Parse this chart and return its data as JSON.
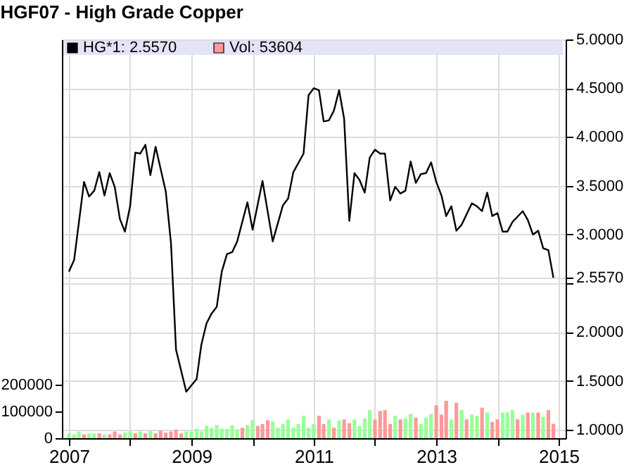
{
  "chart_data": {
    "type": "line",
    "title": "HGF07 - High Grade Copper",
    "xlim": [
      "2007-01-01",
      "2015-01-01"
    ],
    "xticks": [
      {
        "value": "2007-01-01",
        "label": "2007"
      },
      {
        "value": "2008-01-01",
        "label": null
      },
      {
        "value": "2009-01-01",
        "label": "2009"
      },
      {
        "value": "2010-01-01",
        "label": null
      },
      {
        "value": "2011-01-01",
        "label": "2011"
      },
      {
        "value": "2012-01-01",
        "label": null
      },
      {
        "value": "2013-01-01",
        "label": "2013"
      },
      {
        "value": "2014-01-01",
        "label": null
      },
      {
        "value": "2015-01-01",
        "label": "2015"
      }
    ],
    "ylim": [
      0,
      1490000
    ],
    "yticks": [
      0,
      100000,
      200000
    ],
    "y2lim": [
      0.913,
      5.0
    ],
    "y2ticks": [
      {
        "value": 1.0,
        "label": "1.0000"
      },
      {
        "value": 1.5,
        "label": "1.5000"
      },
      {
        "value": 2.0,
        "label": "2.0000"
      },
      {
        "value": 2.5,
        "label": null
      },
      {
        "value": 2.557,
        "label": "2.5570"
      },
      {
        "value": 3.0,
        "label": "3.0000"
      },
      {
        "value": 3.5,
        "label": "3.5000"
      },
      {
        "value": 4.0,
        "label": "4.0000"
      },
      {
        "value": 4.5,
        "label": "4.5000"
      },
      {
        "value": 5.0,
        "label": "5.0000"
      }
    ],
    "grid": true,
    "legend": "top left",
    "series": [
      {
        "name": "Vol: 53604",
        "type": "bar",
        "axis": "y",
        "color": "#ff9999",
        "x": [
          "2007-01",
          "2007-02",
          "2007-03",
          "2007-04",
          "2007-05",
          "2007-06",
          "2007-07",
          "2007-08",
          "2007-09",
          "2007-10",
          "2007-11",
          "2007-12",
          "2008-01",
          "2008-02",
          "2008-03",
          "2008-04",
          "2008-05",
          "2008-06",
          "2008-07",
          "2008-08",
          "2008-09",
          "2008-10",
          "2008-11",
          "2008-12",
          "2009-01",
          "2009-02",
          "2009-03",
          "2009-04",
          "2009-05",
          "2009-06",
          "2009-07",
          "2009-08",
          "2009-09",
          "2009-10",
          "2009-11",
          "2009-12",
          "2010-01",
          "2010-02",
          "2010-03",
          "2010-04",
          "2010-05",
          "2010-06",
          "2010-07",
          "2010-08",
          "2010-09",
          "2010-10",
          "2010-11",
          "2010-12",
          "2011-01",
          "2011-02",
          "2011-03",
          "2011-04",
          "2011-05",
          "2011-06",
          "2011-07",
          "2011-08",
          "2011-09",
          "2011-10",
          "2011-11",
          "2011-12",
          "2012-01",
          "2012-02",
          "2012-03",
          "2012-04",
          "2012-05",
          "2012-06",
          "2012-07",
          "2012-08",
          "2012-09",
          "2012-10",
          "2012-11",
          "2012-12",
          "2013-01",
          "2013-02",
          "2013-03",
          "2013-04",
          "2013-05",
          "2013-06",
          "2013-07",
          "2013-08",
          "2013-09",
          "2013-10",
          "2013-11",
          "2013-12",
          "2014-01",
          "2014-02",
          "2014-03",
          "2014-04",
          "2014-05",
          "2014-06",
          "2014-07",
          "2014-08",
          "2014-09",
          "2014-10",
          "2014-11",
          "2014-12"
        ],
        "values": [
          18000,
          14000,
          25000,
          14000,
          18000,
          18000,
          18000,
          14000,
          14000,
          25000,
          14000,
          21000,
          25000,
          18000,
          25000,
          18000,
          28000,
          18000,
          28000,
          21000,
          25000,
          32000,
          18000,
          25000,
          25000,
          35000,
          25000,
          46000,
          39000,
          49000,
          35000,
          35000,
          49000,
          32000,
          39000,
          49000,
          67000,
          46000,
          53000,
          67000,
          63000,
          39000,
          53000,
          70000,
          39000,
          53000,
          84000,
          39000,
          53000,
          84000,
          53000,
          70000,
          39000,
          67000,
          70000,
          56000,
          70000,
          46000,
          74000,
          105000,
          70000,
          102000,
          105000,
          53000,
          84000,
          70000,
          74000,
          91000,
          77000,
          53000,
          77000,
          91000,
          123000,
          88000,
          140000,
          70000,
          132000,
          105000,
          70000,
          88000,
          84000,
          114000,
          96000,
          61000,
          70000,
          96000,
          96000,
          105000,
          70000,
          88000,
          96000,
          96000,
          96000,
          79000,
          105000,
          54000
        ],
        "colors": [
          "#99ff99",
          "#99ff99",
          "#99ff99",
          "#ff9999",
          "#99ff99",
          "#99ff99",
          "#ff9999",
          "#99ff99",
          "#ff9999",
          "#ff9999",
          "#ff9999",
          "#99ff99",
          "#99ff99",
          "#ff9999",
          "#99ff99",
          "#ff9999",
          "#99ff99",
          "#ff9999",
          "#ff9999",
          "#ff9999",
          "#ff9999",
          "#ff9999",
          "#ff9999",
          "#99ff99",
          "#99ff99",
          "#99ff99",
          "#99ff99",
          "#99ff99",
          "#99ff99",
          "#99ff99",
          "#99ff99",
          "#99ff99",
          "#99ff99",
          "#99ff99",
          "#ff9999",
          "#99ff99",
          "#99ff99",
          "#ff9999",
          "#ff9999",
          "#ff9999",
          "#99ff99",
          "#99ff99",
          "#99ff99",
          "#99ff99",
          "#99ff99",
          "#99ff99",
          "#99ff99",
          "#99ff99",
          "#99ff99",
          "#ff9999",
          "#ff9999",
          "#99ff99",
          "#ff9999",
          "#99ff99",
          "#ff9999",
          "#ff9999",
          "#99ff99",
          "#99ff99",
          "#99ff99",
          "#99ff99",
          "#ff9999",
          "#ff9999",
          "#ff9999",
          "#ff9999",
          "#99ff99",
          "#ff9999",
          "#99ff99",
          "#99ff99",
          "#ff9999",
          "#99ff99",
          "#99ff99",
          "#99ff99",
          "#ff9999",
          "#ff9999",
          "#ff9999",
          "#99ff99",
          "#ff9999",
          "#99ff99",
          "#ff9999",
          "#99ff99",
          "#99ff99",
          "#ff9999",
          "#99ff99",
          "#ff9999",
          "#ff9999",
          "#99ff99",
          "#99ff99",
          "#99ff99",
          "#ff9999",
          "#99ff99",
          "#ff9999",
          "#99ff99",
          "#ff9999",
          "#99ff99",
          "#ff9999",
          "#ff9999"
        ]
      },
      {
        "name": "HG*1: 2.5570",
        "axis": "y2",
        "color": "#000000",
        "x": [
          "2007-01",
          "2007-02",
          "2007-04",
          "2007-05",
          "2007-06",
          "2007-07",
          "2007-08",
          "2007-09",
          "2007-10",
          "2007-11",
          "2007-12",
          "2008-01",
          "2008-02",
          "2008-03",
          "2008-04",
          "2008-05",
          "2008-06",
          "2008-08",
          "2008-09",
          "2008-10",
          "2008-12",
          "2009-02",
          "2009-03",
          "2009-04",
          "2009-05",
          "2009-06",
          "2009-07",
          "2009-08",
          "2009-09",
          "2009-10",
          "2009-12",
          "2010-01",
          "2010-03",
          "2010-05",
          "2010-07",
          "2010-08",
          "2010-09",
          "2010-11",
          "2010-12",
          "2011-01",
          "2011-02",
          "2011-03",
          "2011-04",
          "2011-05",
          "2011-06",
          "2011-07",
          "2011-08",
          "2011-09",
          "2011-10",
          "2011-11",
          "2011-12",
          "2012-01",
          "2012-02",
          "2012-03",
          "2012-04",
          "2012-05",
          "2012-06",
          "2012-07",
          "2012-08",
          "2012-09",
          "2012-10",
          "2012-11",
          "2012-12",
          "2013-01",
          "2013-02",
          "2013-03",
          "2013-04",
          "2013-05",
          "2013-06",
          "2013-08",
          "2013-09",
          "2013-10",
          "2013-11",
          "2013-12",
          "2014-01",
          "2014-02",
          "2014-03",
          "2014-04",
          "2014-06",
          "2014-07",
          "2014-08",
          "2014-09",
          "2014-10",
          "2014-11",
          "2014-12"
        ],
        "values": [
          2.62,
          2.74,
          3.54,
          3.39,
          3.45,
          3.64,
          3.4,
          3.63,
          3.49,
          3.16,
          3.03,
          3.29,
          3.84,
          3.83,
          3.92,
          3.61,
          3.9,
          3.44,
          2.91,
          1.82,
          1.39,
          1.52,
          1.87,
          2.09,
          2.19,
          2.26,
          2.62,
          2.8,
          2.82,
          2.93,
          3.33,
          3.05,
          3.55,
          2.93,
          3.3,
          3.37,
          3.64,
          3.83,
          4.43,
          4.5,
          4.48,
          4.16,
          4.17,
          4.27,
          4.48,
          4.19,
          3.14,
          3.63,
          3.56,
          3.43,
          3.79,
          3.87,
          3.83,
          3.83,
          3.35,
          3.49,
          3.42,
          3.45,
          3.75,
          3.53,
          3.62,
          3.63,
          3.74,
          3.54,
          3.4,
          3.19,
          3.29,
          3.04,
          3.1,
          3.32,
          3.29,
          3.24,
          3.43,
          3.19,
          3.22,
          3.03,
          3.03,
          3.13,
          3.24,
          3.15,
          3.0,
          3.04,
          2.86,
          2.84,
          2.557
        ]
      }
    ]
  }
}
